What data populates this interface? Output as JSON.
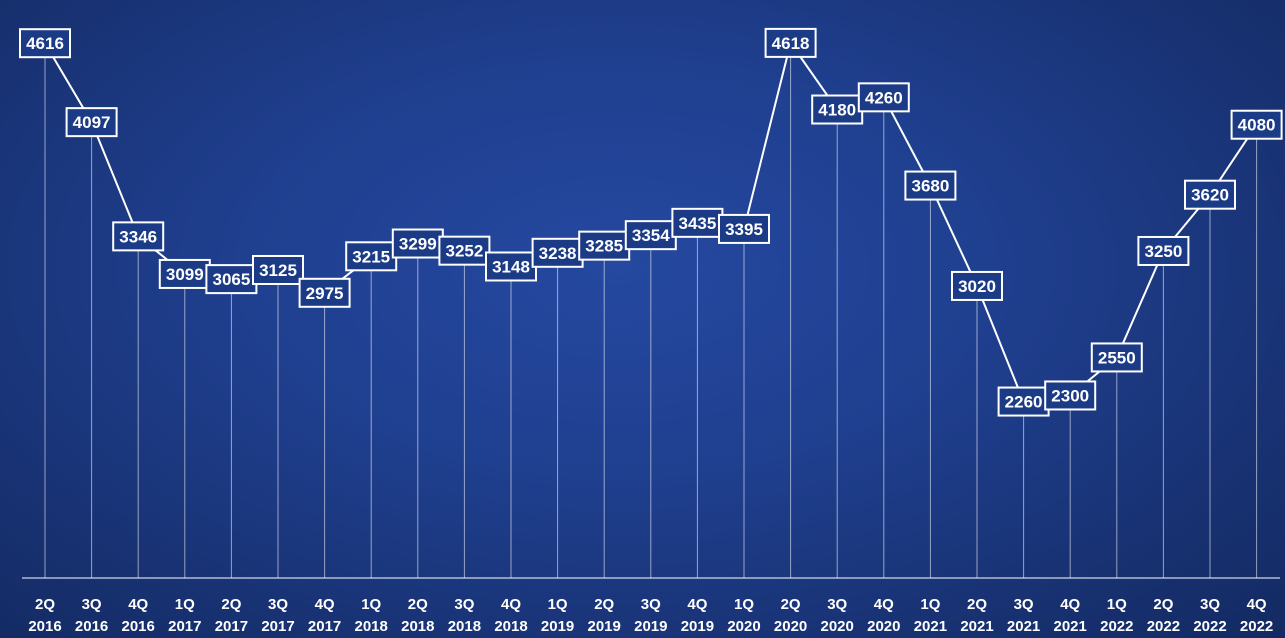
{
  "chart_data": {
    "type": "line",
    "title": "",
    "xlabel": "",
    "ylabel": "",
    "ylim": [
      1100,
      4900
    ],
    "grid": false,
    "legend": "none",
    "categories": [
      [
        "2Q",
        "2016"
      ],
      [
        "3Q",
        "2016"
      ],
      [
        "4Q",
        "2016"
      ],
      [
        "1Q",
        "2017"
      ],
      [
        "2Q",
        "2017"
      ],
      [
        "3Q",
        "2017"
      ],
      [
        "4Q",
        "2017"
      ],
      [
        "1Q",
        "2018"
      ],
      [
        "2Q",
        "2018"
      ],
      [
        "3Q",
        "2018"
      ],
      [
        "4Q",
        "2018"
      ],
      [
        "1Q",
        "2019"
      ],
      [
        "2Q",
        "2019"
      ],
      [
        "3Q",
        "2019"
      ],
      [
        "4Q",
        "2019"
      ],
      [
        "1Q",
        "2020"
      ],
      [
        "2Q",
        "2020"
      ],
      [
        "3Q",
        "2020"
      ],
      [
        "4Q",
        "2020"
      ],
      [
        "1Q",
        "2021"
      ],
      [
        "2Q",
        "2021"
      ],
      [
        "3Q",
        "2021"
      ],
      [
        "4Q",
        "2021"
      ],
      [
        "1Q",
        "2022"
      ],
      [
        "2Q",
        "2022"
      ],
      [
        "3Q",
        "2022"
      ],
      [
        "4Q",
        "2022"
      ]
    ],
    "series": [
      {
        "values": [
          4616,
          4097,
          3346,
          3099,
          3065,
          3125,
          2975,
          3215,
          3299,
          3252,
          3148,
          3238,
          3285,
          3354,
          3435,
          3395,
          4618,
          4180,
          4260,
          3680,
          3020,
          2260,
          2300,
          2550,
          3250,
          3620,
          4080
        ]
      }
    ],
    "colors": {
      "line": "#ffffff",
      "label_fill": "#1c3b86",
      "label_border": "#ffffff",
      "background": "#1f3f8f"
    }
  }
}
